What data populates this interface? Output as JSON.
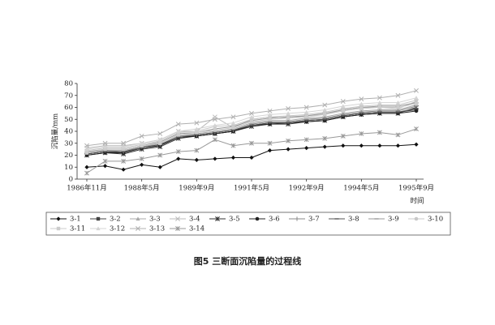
{
  "chart_data": {
    "type": "line",
    "y_label": "沉陷量/mm",
    "x_label": "时间",
    "caption": "图5 三断面沉陷量的过程线",
    "categories": [
      "1986年11月",
      null,
      null,
      "1988年5月",
      null,
      null,
      "1989年9月",
      null,
      null,
      "1991年5月",
      null,
      null,
      "1992年9月",
      null,
      null,
      "1994年5月",
      null,
      null,
      "1995年9月"
    ],
    "ylim": [
      0,
      80
    ],
    "yticks": [
      0,
      10,
      20,
      30,
      40,
      50,
      60,
      70,
      80
    ],
    "series": [
      {
        "name": "3-1",
        "color": "#111111",
        "marker": "diamond",
        "values": [
          10,
          11,
          8,
          12,
          10,
          17,
          16,
          17,
          18,
          18,
          24,
          25,
          26,
          27,
          28,
          28,
          28,
          28,
          29
        ]
      },
      {
        "name": "3-2",
        "color": "#444444",
        "marker": "square",
        "values": [
          21,
          23,
          22,
          26,
          28,
          35,
          36,
          38,
          40,
          45,
          47,
          47,
          49,
          50,
          53,
          55,
          56,
          56,
          58
        ]
      },
      {
        "name": "3-3",
        "color": "#aaaaaa",
        "marker": "triangle",
        "values": [
          22,
          24,
          24,
          27,
          30,
          37,
          38,
          40,
          42,
          47,
          49,
          49,
          51,
          52,
          55,
          57,
          58,
          58,
          62
        ]
      },
      {
        "name": "3-4",
        "color": "#bbbbbb",
        "marker": "x",
        "values": [
          26,
          28,
          28,
          30,
          33,
          40,
          40,
          52,
          43,
          50,
          52,
          51,
          53,
          54,
          58,
          60,
          60,
          59,
          65
        ]
      },
      {
        "name": "3-5",
        "color": "#333333",
        "marker": "star",
        "values": [
          20,
          22,
          21,
          25,
          27,
          34,
          36,
          38,
          40,
          44,
          46,
          46,
          48,
          49,
          52,
          54,
          55,
          55,
          60
        ]
      },
      {
        "name": "3-6",
        "color": "#222222",
        "marker": "circle",
        "values": [
          20,
          22,
          22,
          26,
          28,
          35,
          36,
          38,
          40,
          45,
          46,
          47,
          48,
          49,
          52,
          54,
          55,
          55,
          57
        ]
      },
      {
        "name": "3-7",
        "color": "#888888",
        "marker": "plus",
        "values": [
          22,
          24,
          23,
          27,
          29,
          36,
          37,
          39,
          41,
          46,
          48,
          48,
          50,
          51,
          54,
          56,
          57,
          57,
          61
        ]
      },
      {
        "name": "3-8",
        "color": "#555555",
        "marker": "dash",
        "values": [
          21,
          23,
          23,
          26,
          29,
          35,
          37,
          39,
          41,
          45,
          47,
          47,
          49,
          50,
          53,
          55,
          56,
          56,
          59
        ]
      },
      {
        "name": "3-9",
        "color": "#999999",
        "marker": "dash",
        "values": [
          23,
          25,
          25,
          28,
          31,
          38,
          39,
          42,
          44,
          49,
          51,
          52,
          53,
          55,
          58,
          60,
          61,
          61,
          64
        ]
      },
      {
        "name": "3-10",
        "color": "#c8c8c8",
        "marker": "circle",
        "values": [
          24,
          26,
          26,
          29,
          32,
          39,
          40,
          44,
          45,
          50,
          52,
          53,
          54,
          56,
          59,
          61,
          62,
          62,
          66
        ]
      },
      {
        "name": "3-11",
        "color": "#cccccc",
        "marker": "square",
        "values": [
          22,
          25,
          25,
          28,
          30,
          37,
          39,
          41,
          43,
          48,
          50,
          51,
          52,
          54,
          57,
          59,
          60,
          60,
          63
        ]
      },
      {
        "name": "3-12",
        "color": "#d4d4d4",
        "marker": "triangle",
        "values": [
          25,
          27,
          27,
          30,
          33,
          40,
          42,
          45,
          47,
          52,
          54,
          55,
          56,
          58,
          61,
          63,
          64,
          64,
          68
        ]
      },
      {
        "name": "3-13",
        "color": "#b0b0b0",
        "marker": "x",
        "values": [
          28,
          30,
          30,
          36,
          38,
          46,
          47,
          50,
          52,
          55,
          57,
          59,
          60,
          62,
          65,
          67,
          68,
          70,
          74
        ]
      },
      {
        "name": "3-14",
        "color": "#999999",
        "marker": "star",
        "values": [
          5,
          15,
          15,
          17,
          20,
          23,
          24,
          33,
          28,
          30,
          30,
          32,
          33,
          34,
          36,
          38,
          39,
          37,
          42
        ]
      }
    ]
  }
}
